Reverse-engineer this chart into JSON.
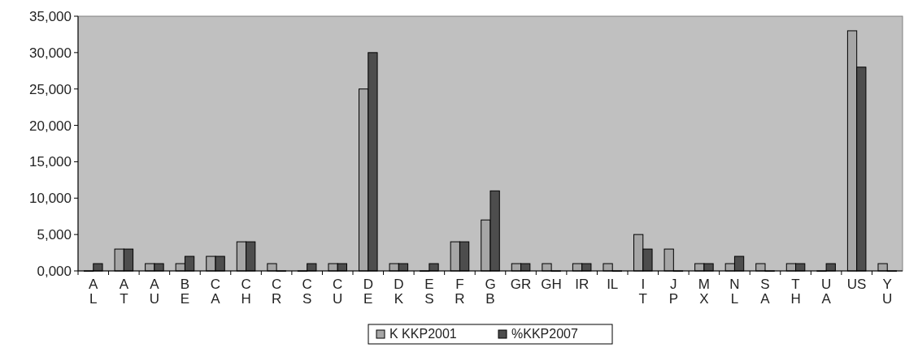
{
  "chart_data": {
    "type": "bar",
    "categories": [
      "A\nL",
      "A\nT",
      "A\nU",
      "B\nE",
      "C\nA",
      "C\nH",
      "C\nR",
      "C\nS",
      "C\nU",
      "D\nE",
      "D\nK",
      "E\nS",
      "F\nR",
      "G\nB",
      "GR",
      "GH",
      "IR",
      "IL",
      "I\nT",
      "J\nP",
      "M\nX",
      "N\nL",
      "S\nA",
      "T\nH",
      "U\nA",
      "US",
      "Y\nU"
    ],
    "series": [
      {
        "name": "K KKP2001",
        "color": "#a6a6a6",
        "values": [
          0,
          3000,
          1000,
          1000,
          2000,
          4000,
          1000,
          0,
          1000,
          25000,
          1000,
          0,
          4000,
          7000,
          1000,
          1000,
          1000,
          1000,
          5000,
          3000,
          1000,
          1000,
          1000,
          1000,
          0,
          33000,
          1000
        ]
      },
      {
        "name": "%KKP2007",
        "color": "#4d4d4d",
        "values": [
          1000,
          3000,
          1000,
          2000,
          2000,
          4000,
          0,
          1000,
          1000,
          30000,
          1000,
          1000,
          4000,
          11000,
          1000,
          0,
          1000,
          0,
          3000,
          0,
          1000,
          2000,
          0,
          1000,
          1000,
          28000,
          0
        ]
      }
    ],
    "ylim": [
      0,
      35000
    ],
    "yticks": [
      {
        "value": 0,
        "label": "0,000"
      },
      {
        "value": 5000,
        "label": "5,000"
      },
      {
        "value": 10000,
        "label": "10,000"
      },
      {
        "value": 15000,
        "label": "15,000"
      },
      {
        "value": 20000,
        "label": "20,000"
      },
      {
        "value": 25000,
        "label": "25,000"
      },
      {
        "value": 30000,
        "label": "30,000"
      },
      {
        "value": 35000,
        "label": "35,000"
      }
    ],
    "grid": false,
    "legend": "bottom"
  }
}
